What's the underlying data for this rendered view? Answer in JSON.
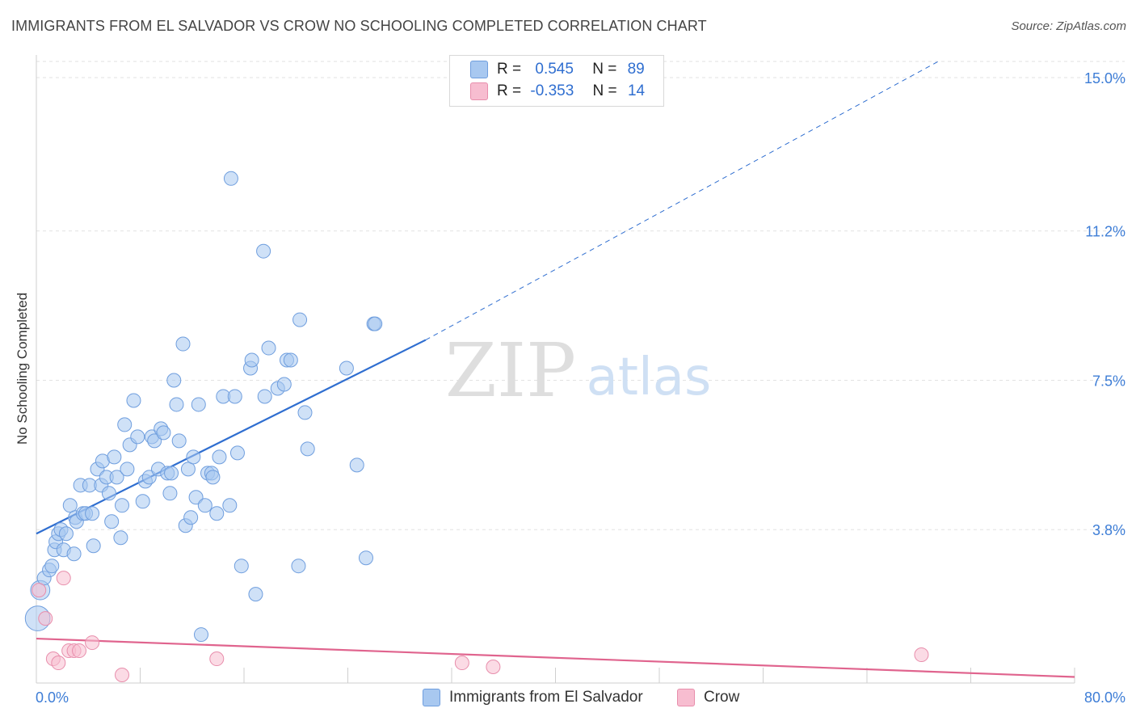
{
  "title": "IMMIGRANTS FROM EL SALVADOR VS CROW NO SCHOOLING COMPLETED CORRELATION CHART",
  "source": "Source: ZipAtlas.com",
  "watermark": {
    "zip": "ZIP",
    "atlas": "atlas"
  },
  "legend_top": [
    {
      "r_label": "R =",
      "r_value": "0.545",
      "n_label": "N =",
      "n_value": "89"
    },
    {
      "r_label": "R =",
      "r_value": "-0.353",
      "n_label": "N =",
      "n_value": "14"
    }
  ],
  "chart_data": {
    "type": "scatter",
    "xlabel": "",
    "ylabel": "No Schooling Completed",
    "xlim": [
      0,
      80
    ],
    "ylim": [
      0,
      15.4
    ],
    "x_tick_labels": [
      "0.0%",
      "80.0%"
    ],
    "y_ticks": [
      3.8,
      7.5,
      11.2,
      15.0
    ],
    "y_tick_labels": [
      "3.8%",
      "7.5%",
      "11.2%",
      "15.0%"
    ],
    "grid": true,
    "colors": {
      "blue_fill": "#a8c8f0",
      "blue_stroke": "#6f9ede",
      "blue_line": "#2f6ed0",
      "pink_fill": "#f7bdd0",
      "pink_stroke": "#e88eac",
      "pink_line": "#e0648e",
      "axis_label_blue": "#3d7dd6"
    },
    "series": [
      {
        "name": "Immigrants from El Salvador",
        "points": [
          [
            0.1,
            1.6,
            18
          ],
          [
            0.3,
            2.3,
            14
          ],
          [
            0.6,
            2.6,
            10
          ],
          [
            1.0,
            2.8,
            10
          ],
          [
            1.2,
            2.9,
            10
          ],
          [
            1.4,
            3.3,
            10
          ],
          [
            1.5,
            3.5,
            10
          ],
          [
            1.7,
            3.7,
            10
          ],
          [
            1.9,
            3.8,
            10
          ],
          [
            2.1,
            3.3,
            10
          ],
          [
            2.3,
            3.7,
            10
          ],
          [
            2.6,
            4.4,
            10
          ],
          [
            2.9,
            3.2,
            10
          ],
          [
            3.0,
            4.1,
            10
          ],
          [
            3.1,
            4.0,
            10
          ],
          [
            3.4,
            4.9,
            10
          ],
          [
            3.6,
            4.2,
            10
          ],
          [
            3.8,
            4.2,
            10
          ],
          [
            4.1,
            4.9,
            10
          ],
          [
            4.3,
            4.2,
            10
          ],
          [
            4.4,
            3.4,
            10
          ],
          [
            4.7,
            5.3,
            10
          ],
          [
            5.0,
            4.9,
            10
          ],
          [
            5.1,
            5.5,
            10
          ],
          [
            5.4,
            5.1,
            10
          ],
          [
            5.6,
            4.7,
            10
          ],
          [
            5.8,
            4.0,
            10
          ],
          [
            6.0,
            5.6,
            10
          ],
          [
            6.2,
            5.1,
            10
          ],
          [
            6.5,
            3.6,
            10
          ],
          [
            6.6,
            4.4,
            10
          ],
          [
            6.8,
            6.4,
            10
          ],
          [
            7.0,
            5.3,
            10
          ],
          [
            7.2,
            5.9,
            10
          ],
          [
            7.5,
            7.0,
            10
          ],
          [
            7.8,
            6.1,
            10
          ],
          [
            8.2,
            4.5,
            10
          ],
          [
            8.4,
            5.0,
            10
          ],
          [
            8.7,
            5.1,
            10
          ],
          [
            8.9,
            6.1,
            10
          ],
          [
            9.1,
            6.0,
            10
          ],
          [
            9.4,
            5.3,
            10
          ],
          [
            9.6,
            6.3,
            10
          ],
          [
            9.8,
            6.2,
            10
          ],
          [
            10.1,
            5.2,
            10
          ],
          [
            10.3,
            4.7,
            10
          ],
          [
            10.4,
            5.2,
            10
          ],
          [
            10.6,
            7.5,
            10
          ],
          [
            10.8,
            6.9,
            10
          ],
          [
            11.0,
            6.0,
            10
          ],
          [
            11.3,
            8.4,
            10
          ],
          [
            11.5,
            3.9,
            10
          ],
          [
            11.7,
            5.3,
            10
          ],
          [
            11.9,
            4.1,
            10
          ],
          [
            12.1,
            5.6,
            10
          ],
          [
            12.3,
            4.6,
            10
          ],
          [
            12.5,
            6.9,
            10
          ],
          [
            12.7,
            1.2,
            10
          ],
          [
            13.0,
            4.4,
            10
          ],
          [
            13.2,
            5.2,
            10
          ],
          [
            13.5,
            5.2,
            10
          ],
          [
            13.6,
            5.1,
            10
          ],
          [
            13.9,
            4.2,
            10
          ],
          [
            14.1,
            5.6,
            10
          ],
          [
            14.4,
            7.1,
            10
          ],
          [
            14.9,
            4.4,
            10
          ],
          [
            15.0,
            12.5,
            10
          ],
          [
            15.3,
            7.1,
            10
          ],
          [
            15.5,
            5.7,
            10
          ],
          [
            15.8,
            2.9,
            10
          ],
          [
            16.5,
            7.8,
            10
          ],
          [
            16.6,
            8.0,
            10
          ],
          [
            16.9,
            2.2,
            10
          ],
          [
            17.6,
            7.1,
            10
          ],
          [
            17.5,
            10.7,
            10
          ],
          [
            17.9,
            8.3,
            10
          ],
          [
            18.6,
            7.3,
            10
          ],
          [
            19.1,
            7.4,
            10
          ],
          [
            19.3,
            8.0,
            10
          ],
          [
            19.6,
            8.0,
            10
          ],
          [
            20.2,
            2.9,
            10
          ],
          [
            20.3,
            9.0,
            10
          ],
          [
            20.7,
            6.7,
            10
          ],
          [
            20.9,
            5.8,
            10
          ],
          [
            23.9,
            7.8,
            10
          ],
          [
            24.7,
            5.4,
            10
          ],
          [
            25.4,
            3.1,
            10
          ],
          [
            26.0,
            8.9,
            10
          ],
          [
            26.1,
            8.9,
            10
          ]
        ]
      },
      {
        "name": "Crow",
        "points": [
          [
            0.2,
            2.3,
            10
          ],
          [
            0.7,
            1.6,
            10
          ],
          [
            2.1,
            2.6,
            10
          ],
          [
            1.3,
            0.6,
            10
          ],
          [
            1.7,
            0.5,
            10
          ],
          [
            2.5,
            0.8,
            10
          ],
          [
            2.9,
            0.8,
            10
          ],
          [
            3.3,
            0.8,
            10
          ],
          [
            4.3,
            1.0,
            10
          ],
          [
            6.6,
            0.2,
            10
          ],
          [
            13.9,
            0.6,
            10
          ],
          [
            32.8,
            0.5,
            10
          ],
          [
            35.2,
            0.4,
            10
          ],
          [
            68.2,
            0.7,
            10
          ]
        ]
      }
    ],
    "trendlines": [
      {
        "series": "Immigrants from El Salvador",
        "solid_from": [
          0,
          3.7
        ],
        "solid_to": [
          30,
          8.5
        ],
        "dashed_to": [
          69.5,
          15.4
        ]
      },
      {
        "series": "Crow",
        "from": [
          0,
          1.1
        ],
        "to": [
          80,
          0.15
        ]
      }
    ]
  }
}
